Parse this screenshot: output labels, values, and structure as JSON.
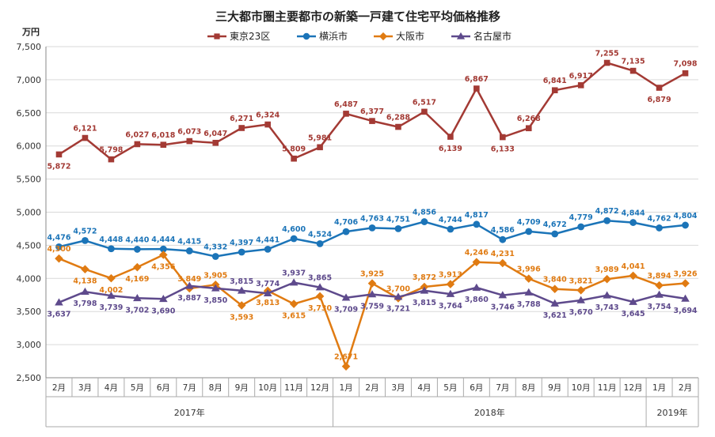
{
  "chart_data": {
    "type": "line",
    "title": "三大都市圏主要都市の新築一戸建て住宅平均価格推移",
    "ylabel": "万円",
    "ylim": [
      2500,
      7500
    ],
    "yticks": [
      "2,500",
      "3,000",
      "3,500",
      "4,000",
      "4,500",
      "5,000",
      "5,500",
      "6,000",
      "6,500",
      "7,000",
      "7,500"
    ],
    "ytick_values": [
      2500,
      3000,
      3500,
      4000,
      4500,
      5000,
      5500,
      6000,
      6500,
      7000,
      7500
    ],
    "categories": [
      "2月",
      "3月",
      "4月",
      "5月",
      "6月",
      "7月",
      "8月",
      "9月",
      "10月",
      "11月",
      "12月",
      "1月",
      "2月",
      "3月",
      "4月",
      "5月",
      "6月",
      "7月",
      "8月",
      "9月",
      "10月",
      "11月",
      "12月",
      "1月",
      "2月"
    ],
    "years": [
      {
        "label": "2017年",
        "start": 0,
        "end": 10
      },
      {
        "label": "2018年",
        "start": 11,
        "end": 22
      },
      {
        "label": "2019年",
        "start": 23,
        "end": 24
      }
    ],
    "series": [
      {
        "name": "東京23区",
        "color": "#a33a34",
        "marker": "square",
        "values": [
          5872,
          6121,
          5798,
          6027,
          6018,
          6073,
          6047,
          6271,
          6324,
          5809,
          5981,
          6487,
          6377,
          6288,
          6517,
          6139,
          6867,
          6133,
          6268,
          6841,
          6917,
          7255,
          7135,
          6879,
          7098
        ],
        "labels": [
          "5,872",
          "6,121",
          "5,798",
          "6,027",
          "6,018",
          "6,073",
          "6,047",
          "6,271",
          "6,324",
          "5,809",
          "5,981",
          "6,487",
          "6,377",
          "6,288",
          "6,517",
          "6,139",
          "6,867",
          "6,133",
          "6,268",
          "6,841",
          "6,917",
          "7,255",
          "7,135",
          "6,879",
          "7,098"
        ],
        "label_pos": [
          "below",
          "above",
          "above",
          "above",
          "above",
          "above",
          "above",
          "above",
          "above",
          "above",
          "above",
          "above",
          "above",
          "above",
          "above",
          "below",
          "above",
          "below",
          "above",
          "above",
          "above",
          "above",
          "above",
          "below",
          "above"
        ]
      },
      {
        "name": "横浜市",
        "color": "#1b74b8",
        "marker": "circle",
        "values": [
          4476,
          4572,
          4448,
          4440,
          4444,
          4415,
          4332,
          4397,
          4441,
          4600,
          4524,
          4706,
          4763,
          4751,
          4856,
          4744,
          4817,
          4586,
          4709,
          4672,
          4779,
          4872,
          4844,
          4762,
          4804
        ],
        "labels": [
          "4,476",
          "4,572",
          "4,448",
          "4,440",
          "4,444",
          "4,415",
          "4,332",
          "4,397",
          "4,441",
          "4,600",
          "4,524",
          "4,706",
          "4,763",
          "4,751",
          "4,856",
          "4,744",
          "4,817",
          "4,586",
          "4,709",
          "4,672",
          "4,779",
          "4,872",
          "4,844",
          "4,762",
          "4,804"
        ],
        "label_pos": [
          "above",
          "above",
          "above",
          "above",
          "above",
          "above",
          "above",
          "above",
          "above",
          "above",
          "above",
          "above",
          "above",
          "above",
          "above",
          "above",
          "above",
          "above",
          "above",
          "above",
          "above",
          "above",
          "above",
          "above",
          "above"
        ]
      },
      {
        "name": "大阪市",
        "color": "#e07b12",
        "marker": "diamond",
        "values": [
          4300,
          4138,
          4002,
          4169,
          4356,
          3849,
          3905,
          3593,
          3813,
          3615,
          3730,
          2671,
          3925,
          3700,
          3872,
          3913,
          4246,
          4231,
          3996,
          3840,
          3821,
          3989,
          4041,
          3894,
          3926
        ],
        "labels": [
          "4,300",
          "4,138",
          "4,002",
          "4,169",
          "4,356",
          "3,849",
          "3,905",
          "3,593",
          "3,813",
          "3,615",
          "3,730",
          "2,671",
          "3,925",
          "3,700",
          "3,872",
          "3,913",
          "4,246",
          "4,231",
          "3,996",
          "3,840",
          "3,821",
          "3,989",
          "4,041",
          "3,894",
          "3,926"
        ],
        "label_pos": [
          "above",
          "below",
          "below",
          "below",
          "below",
          "above",
          "above",
          "below",
          "below",
          "below",
          "below",
          "above",
          "above",
          "above",
          "above",
          "above",
          "above",
          "above",
          "above",
          "above",
          "above",
          "above",
          "above",
          "above",
          "above"
        ]
      },
      {
        "name": "名古屋市",
        "color": "#5e4a8c",
        "marker": "triangle",
        "values": [
          3637,
          3798,
          3739,
          3702,
          3690,
          3887,
          3850,
          3815,
          3774,
          3937,
          3865,
          3709,
          3759,
          3721,
          3815,
          3764,
          3860,
          3746,
          3788,
          3621,
          3670,
          3743,
          3645,
          3754,
          3694
        ],
        "labels": [
          "3,637",
          "3,798",
          "3,739",
          "3,702",
          "3,690",
          "3,887",
          "3,850",
          "3,815",
          "3,774",
          "3,937",
          "3,865",
          "3,709",
          "3,759",
          "3,721",
          "3,815",
          "3,764",
          "3,860",
          "3,746",
          "3,788",
          "3,621",
          "3,670",
          "3,743",
          "3,645",
          "3,754",
          "3,694"
        ],
        "label_pos": [
          "below",
          "below",
          "below",
          "below",
          "below",
          "below",
          "below",
          "above",
          "above",
          "above",
          "above",
          "below",
          "below",
          "below",
          "below",
          "below",
          "below",
          "below",
          "below",
          "below",
          "below",
          "below",
          "below",
          "below",
          "below"
        ]
      }
    ]
  }
}
